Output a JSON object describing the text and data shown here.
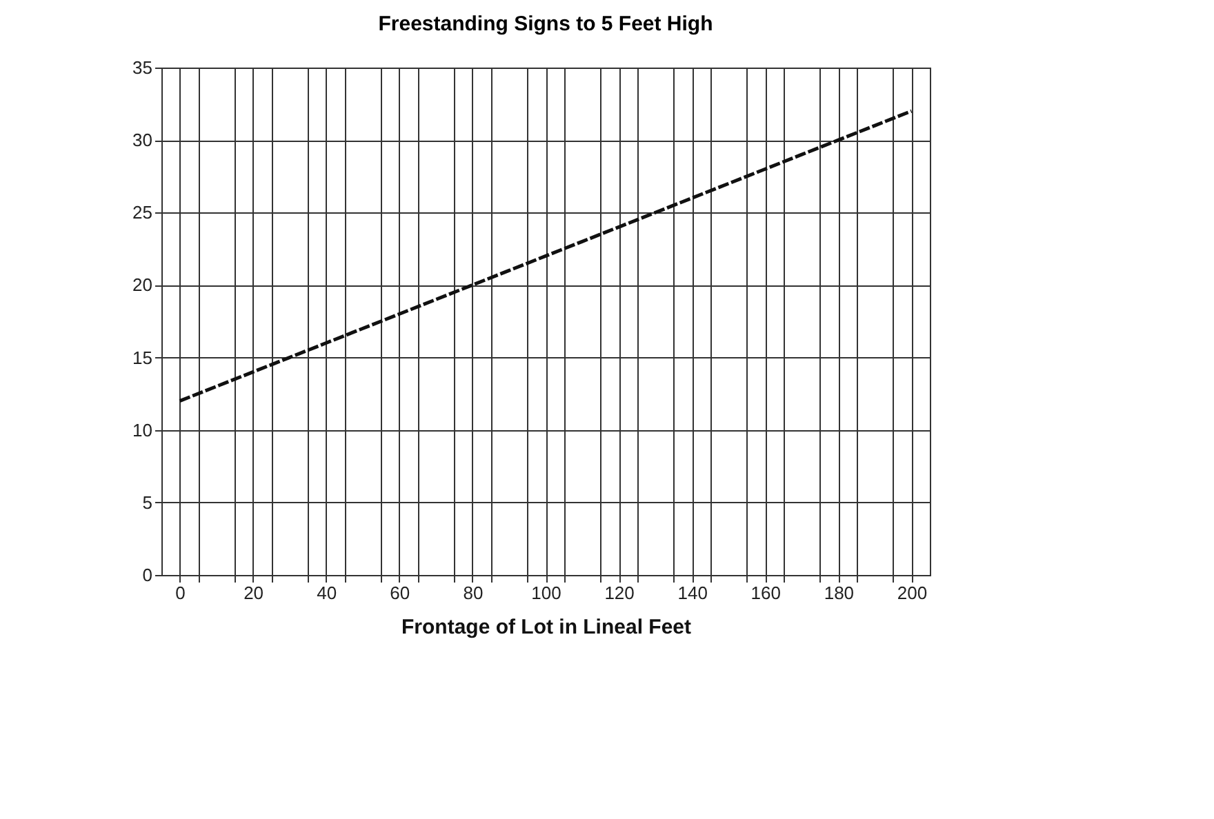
{
  "chart_data": {
    "type": "line",
    "title": "Freestanding Signs to 5 Feet High",
    "xlabel": "Frontage of Lot in Lineal Feet",
    "x": [
      0,
      10,
      20,
      30,
      40,
      50,
      60,
      70,
      80,
      90,
      100,
      110,
      120,
      130,
      140,
      150,
      160,
      170,
      180,
      190,
      200
    ],
    "series": [
      {
        "color": "#111111",
        "values": [
          12,
          13,
          14,
          15,
          16,
          17,
          18,
          19,
          20,
          21,
          22,
          23,
          24,
          25,
          26,
          27,
          28,
          29,
          30,
          31,
          32
        ]
      }
    ],
    "xlim": [
      -5,
      205
    ],
    "xticks": [
      0,
      {
        "value": 5,
        "label": null
      },
      {
        "value": 15,
        "label": null
      },
      20,
      {
        "value": 25,
        "label": null
      },
      {
        "value": 35,
        "label": null
      },
      40,
      {
        "value": 45,
        "label": null
      },
      {
        "value": 55,
        "label": null
      },
      60,
      {
        "value": 65,
        "label": null
      },
      {
        "value": 75,
        "label": null
      },
      80,
      {
        "value": 85,
        "label": null
      },
      {
        "value": 95,
        "label": null
      },
      100,
      {
        "value": 105,
        "label": null
      },
      {
        "value": 115,
        "label": null
      },
      120,
      {
        "value": 125,
        "label": null
      },
      {
        "value": 135,
        "label": null
      },
      140,
      {
        "value": 145,
        "label": null
      },
      {
        "value": 155,
        "label": null
      },
      160,
      {
        "value": 165,
        "label": null
      },
      {
        "value": 175,
        "label": null
      },
      180,
      {
        "value": 185,
        "label": null
      },
      {
        "value": 195,
        "label": null
      },
      200
    ],
    "ylim": [
      0,
      35
    ],
    "yticks": [
      0,
      5,
      10,
      15,
      20,
      25,
      30,
      35
    ],
    "grid": true,
    "line_style": "dashed"
  }
}
